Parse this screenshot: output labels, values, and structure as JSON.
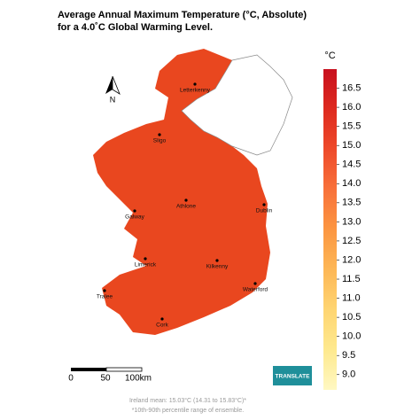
{
  "title": [
    "Average Annual Maximum Temperature (°C, Absolute)",
    "for a 4.0˚C Global Warming Level."
  ],
  "map_color": "#e9471f",
  "north": "N",
  "cities": [
    "Letterkenny",
    "Sligo",
    "Galway",
    "Athlone",
    "Dublin",
    "Limerick",
    "Kilkenny",
    "Waterford",
    "Tralee",
    "Cork"
  ],
  "colorbar": {
    "unit": "°C",
    "lim": [
      8.6,
      17.0
    ],
    "ticks": [
      {
        "value": 9,
        "label": "9.0"
      },
      9.5,
      {
        "value": 10,
        "label": "10.0"
      },
      10.5,
      {
        "value": 11,
        "label": "11.0"
      },
      11.5,
      {
        "value": 12,
        "label": "12.0"
      },
      12.5,
      {
        "value": 13,
        "label": "13.0"
      },
      13.5,
      {
        "value": 14,
        "label": "14.0"
      },
      14.5,
      {
        "value": 15,
        "label": "15.0"
      },
      15.5,
      {
        "value": 16,
        "label": "16.0"
      },
      16.5
    ],
    "colors": [
      "#fff8c2",
      "#fee98e",
      "#fed572",
      "#fdb756",
      "#fc9641",
      "#f8713a",
      "#ee4a2a",
      "#de2a1f",
      "#c8101e"
    ]
  },
  "scale_bar": [
    "0",
    "50",
    "100km"
  ],
  "logo": "TRANSLATE",
  "footer": [
    "Ireland mean: 15.03°C (14.31 to 15.83°C)*",
    "*10th-90th percentile range of ensemble."
  ]
}
